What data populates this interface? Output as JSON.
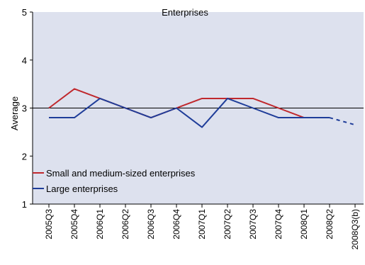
{
  "chart_data": {
    "type": "line",
    "title": "Enterprises",
    "ylabel": "Average",
    "xlabel": "",
    "ylim": [
      1,
      5
    ],
    "yticks": [
      1,
      2,
      3,
      4,
      5
    ],
    "reference_line": 3,
    "plot_background": "#dde1ee",
    "grid": false,
    "legend_position": "bottom-left",
    "categories": [
      "2005Q3",
      "2005Q4",
      "2006Q1",
      "2006Q2",
      "2006Q3",
      "2006Q4",
      "2007Q1",
      "2007Q2",
      "2007Q3",
      "2007Q4",
      "2008Q1",
      "2008Q2",
      "2008Q3(b)"
    ],
    "series": [
      {
        "name": "Small and medium-sized enterprises",
        "color": "#c0282d",
        "values": [
          3.0,
          3.4,
          3.2,
          3.0,
          2.8,
          3.0,
          3.2,
          3.2,
          3.2,
          3.0,
          2.8,
          2.8,
          null
        ]
      },
      {
        "name": "Large enterprises",
        "color": "#1f3d99",
        "values": [
          2.8,
          2.8,
          3.2,
          3.0,
          2.8,
          3.0,
          2.6,
          3.2,
          3.0,
          2.8,
          2.8,
          2.8,
          2.65
        ],
        "dashed_from_index": 11
      }
    ]
  }
}
